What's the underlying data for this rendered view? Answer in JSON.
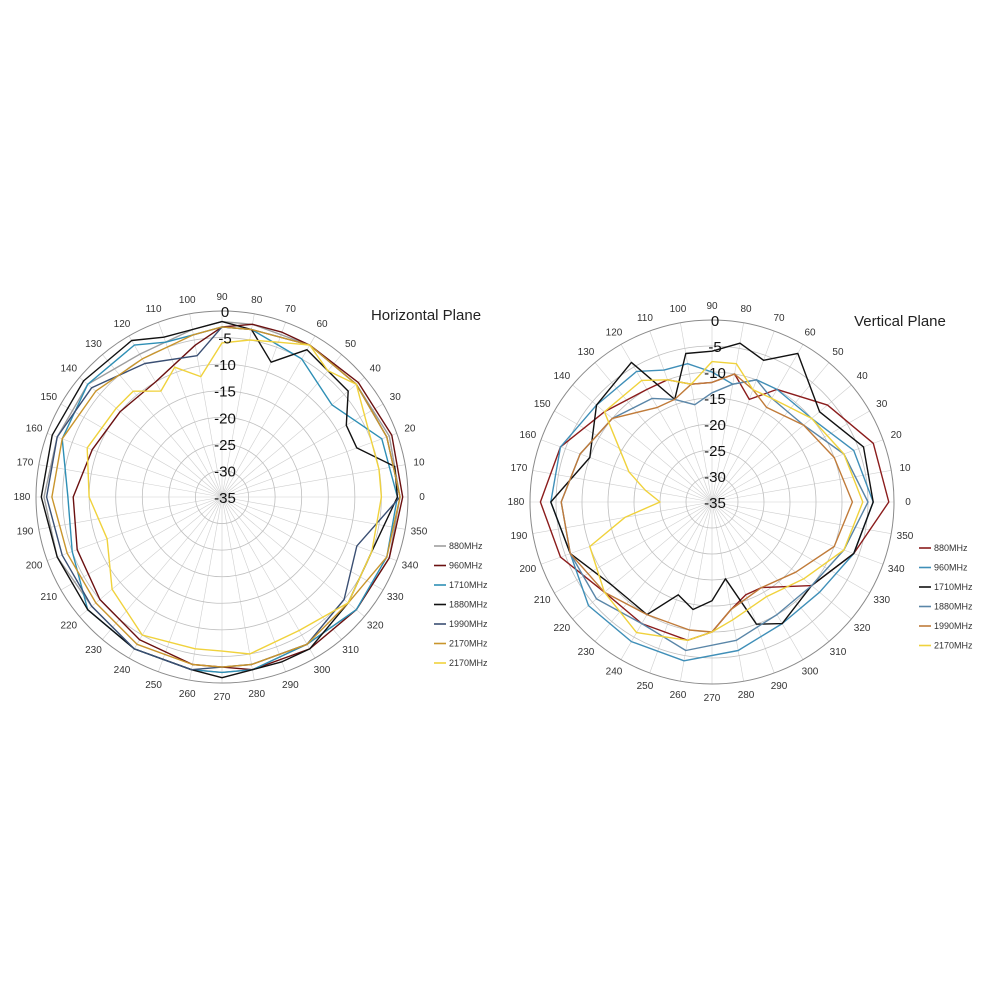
{
  "chart_data": [
    {
      "type": "polar-line",
      "title": "Horizontal Plane",
      "r_ticks": [
        "0",
        "-5",
        "-10",
        "-15",
        "-20",
        "-25",
        "-30",
        "-35"
      ],
      "rlim": [
        -35,
        0
      ],
      "theta_labels": [
        "90",
        "80",
        "70",
        "60",
        "50",
        "40",
        "30",
        "20",
        "10",
        "0",
        "350",
        "340",
        "330",
        "320",
        "310",
        "300",
        "290",
        "280",
        "270",
        "260",
        "250",
        "240",
        "230",
        "220",
        "210",
        "200",
        "190",
        "180",
        "170",
        "160",
        "150",
        "140",
        "130",
        "120",
        "110",
        "100"
      ],
      "legend_placement": "right",
      "series": [
        {
          "name": "880MHz",
          "color": "#9e9e9e",
          "theta": [
            0,
            20,
            40,
            60,
            80,
            90,
            100,
            120,
            140,
            160,
            180,
            200,
            220,
            240,
            260,
            270,
            280,
            300,
            320,
            340
          ],
          "r": [
            -1.5,
            -1.5,
            -2,
            -2,
            -2,
            -2,
            -3,
            -4,
            -2,
            -2,
            -1.5,
            -2,
            -3,
            -2,
            -2,
            -2,
            -2,
            -3,
            -2,
            -1.5
          ]
        },
        {
          "name": "960MHz",
          "color": "#6b1010",
          "theta": [
            0,
            20,
            40,
            60,
            70,
            80,
            90,
            100,
            120,
            140,
            160,
            180,
            200,
            220,
            240,
            260,
            270,
            280,
            300,
            320,
            340
          ],
          "r": [
            -1,
            -1,
            -1.5,
            -2,
            -2,
            -2,
            -3,
            -6,
            -10,
            -10,
            -9,
            -7,
            -6,
            -5,
            -4,
            -3,
            -3,
            -2,
            -2,
            -2,
            -1.5
          ]
        },
        {
          "name": "1710MHz",
          "color": "#2e8fb5",
          "theta": [
            0,
            20,
            40,
            60,
            80,
            90,
            100,
            110,
            120,
            140,
            160,
            180,
            200,
            220,
            240,
            260,
            270,
            280,
            300,
            320,
            340
          ],
          "r": [
            -2,
            -3,
            -8,
            -5,
            -3,
            -3,
            -4,
            -4,
            -2,
            -2,
            -3,
            -6,
            -5,
            -2,
            -2,
            -2,
            -2,
            -2,
            -3,
            -2,
            -2
          ]
        },
        {
          "name": "1880MHz",
          "color": "#111111",
          "theta": [
            0,
            10,
            20,
            30,
            40,
            50,
            60,
            70,
            80,
            90,
            100,
            110,
            120,
            140,
            160,
            180,
            200,
            220,
            240,
            260,
            270,
            280,
            290,
            300,
            320,
            340
          ],
          "r": [
            -2,
            -2,
            -8,
            -8,
            -4,
            -4,
            -3,
            -8,
            -3,
            -2,
            -3,
            -3,
            -1,
            -1,
            -1,
            -1,
            -2,
            -2,
            -2,
            -2,
            -1,
            -2,
            -2,
            -2,
            -4,
            -5
          ]
        },
        {
          "name": "1990MHz",
          "color": "#3a4f73",
          "theta": [
            0,
            20,
            40,
            60,
            80,
            90,
            100,
            120,
            140,
            160,
            180,
            200,
            220,
            240,
            260,
            270,
            280,
            300,
            320,
            340
          ],
          "r": [
            -1.5,
            -2,
            -2,
            -2,
            -3,
            -3,
            -8,
            -6,
            -3,
            -2,
            -2,
            -3,
            -3,
            -2,
            -2,
            -3,
            -3,
            -3,
            -5,
            -8
          ]
        },
        {
          "name": "2170MHz",
          "color": "#c9952c",
          "theta": [
            0,
            20,
            40,
            60,
            80,
            90,
            100,
            120,
            140,
            160,
            180,
            200,
            220,
            240,
            260,
            270,
            280,
            300,
            320,
            340
          ],
          "r": [
            -1.5,
            -2,
            -2,
            -2,
            -3,
            -3,
            -4,
            -5,
            -4,
            -3,
            -3,
            -4,
            -4,
            -3,
            -3,
            -3,
            -3,
            -3,
            -4,
            -2
          ]
        },
        {
          "name": "2170MHz",
          "color": "#f0d23c",
          "theta": [
            0,
            10,
            20,
            40,
            50,
            60,
            70,
            80,
            90,
            100,
            110,
            120,
            130,
            140,
            160,
            180,
            200,
            220,
            240,
            260,
            270,
            280,
            300,
            320,
            340
          ],
          "r": [
            -5,
            -5,
            -5,
            -2,
            -4,
            -2,
            -4,
            -5,
            -6,
            -12,
            -9,
            -12,
            -9,
            -9,
            -8,
            -10,
            -12,
            -8,
            -5,
            -6,
            -6,
            -5,
            -6,
            -4,
            -5
          ]
        }
      ]
    },
    {
      "type": "polar-line",
      "title": "Vertical Plane",
      "r_ticks": [
        "0",
        "-5",
        "-10",
        "-15",
        "-20",
        "-25",
        "-30",
        "-35"
      ],
      "rlim": [
        -35,
        0
      ],
      "theta_labels": [
        "90",
        "80",
        "70",
        "60",
        "50",
        "40",
        "30",
        "20",
        "10",
        "0",
        "350",
        "340",
        "330",
        "320",
        "310",
        "300",
        "290",
        "280",
        "270",
        "260",
        "250",
        "240",
        "230",
        "220",
        "210",
        "200",
        "190",
        "180",
        "170",
        "160",
        "150",
        "140",
        "130",
        "120",
        "110",
        "100"
      ],
      "legend_placement": "right",
      "series": [
        {
          "name": "880MHz",
          "color": "#8b1c1c",
          "theta": [
            0,
            20,
            40,
            60,
            70,
            80,
            90,
            100,
            110,
            120,
            140,
            160,
            180,
            200,
            220,
            240,
            260,
            270,
            280,
            290,
            300,
            320,
            340
          ],
          "r": [
            -1,
            -2,
            -6,
            -10,
            -14,
            -10,
            -12,
            -12,
            -10,
            -10,
            -8,
            -4,
            -2,
            -4,
            -8,
            -8,
            -8,
            -10,
            -14,
            -16,
            -16,
            -10,
            -6
          ]
        },
        {
          "name": "960MHz",
          "color": "#3f8fb8",
          "theta": [
            0,
            20,
            40,
            60,
            70,
            80,
            90,
            100,
            110,
            120,
            140,
            160,
            180,
            200,
            220,
            240,
            260,
            280,
            300,
            320,
            340
          ],
          "r": [
            -4,
            -6,
            -10,
            -10,
            -10,
            -12,
            -10,
            -8,
            -8,
            -6,
            -6,
            -4,
            -4,
            -6,
            -4,
            -4,
            -4,
            -6,
            -8,
            -8,
            -6
          ]
        },
        {
          "name": "1710MHz",
          "color": "#111111",
          "theta": [
            0,
            20,
            40,
            60,
            70,
            80,
            90,
            100,
            110,
            120,
            140,
            160,
            180,
            200,
            220,
            240,
            250,
            260,
            270,
            280,
            290,
            300,
            320,
            340
          ],
          "r": [
            -4,
            -4,
            -8,
            -2,
            -6,
            -4,
            -6,
            -6,
            -14,
            -4,
            -6,
            -10,
            -4,
            -6,
            -10,
            -10,
            -16,
            -14,
            -16,
            -20,
            -10,
            -8,
            -10,
            -6
          ]
        },
        {
          "name": "1880MHz",
          "color": "#5a86a8",
          "theta": [
            0,
            20,
            40,
            60,
            70,
            80,
            90,
            100,
            110,
            120,
            140,
            160,
            180,
            200,
            220,
            240,
            260,
            280,
            300,
            320,
            340
          ],
          "r": [
            -5,
            -8,
            -12,
            -12,
            -10,
            -12,
            -14,
            -16,
            -14,
            -12,
            -10,
            -8,
            -6,
            -6,
            -6,
            -8,
            -6,
            -8,
            -10,
            -10,
            -8
          ]
        },
        {
          "name": "1990MHz",
          "color": "#c07b3a",
          "theta": [
            0,
            20,
            40,
            60,
            70,
            80,
            90,
            100,
            110,
            120,
            140,
            160,
            180,
            200,
            220,
            240,
            260,
            270,
            280,
            300,
            320,
            340
          ],
          "r": [
            -8,
            -10,
            -12,
            -14,
            -12,
            -10,
            -12,
            -12,
            -14,
            -14,
            -10,
            -8,
            -6,
            -6,
            -8,
            -10,
            -10,
            -10,
            -14,
            -16,
            -14,
            -10
          ]
        },
        {
          "name": "2170MHz",
          "color": "#f0d23c",
          "theta": [
            0,
            20,
            40,
            60,
            70,
            80,
            90,
            100,
            110,
            120,
            140,
            160,
            170,
            180,
            190,
            200,
            220,
            240,
            260,
            270,
            280,
            300,
            320,
            340
          ],
          "r": [
            -6,
            -8,
            -10,
            -12,
            -12,
            -8,
            -8,
            -12,
            -10,
            -8,
            -8,
            -18,
            -22,
            -25,
            -18,
            -10,
            -8,
            -6,
            -8,
            -10,
            -12,
            -14,
            -12,
            -8
          ]
        }
      ]
    }
  ]
}
